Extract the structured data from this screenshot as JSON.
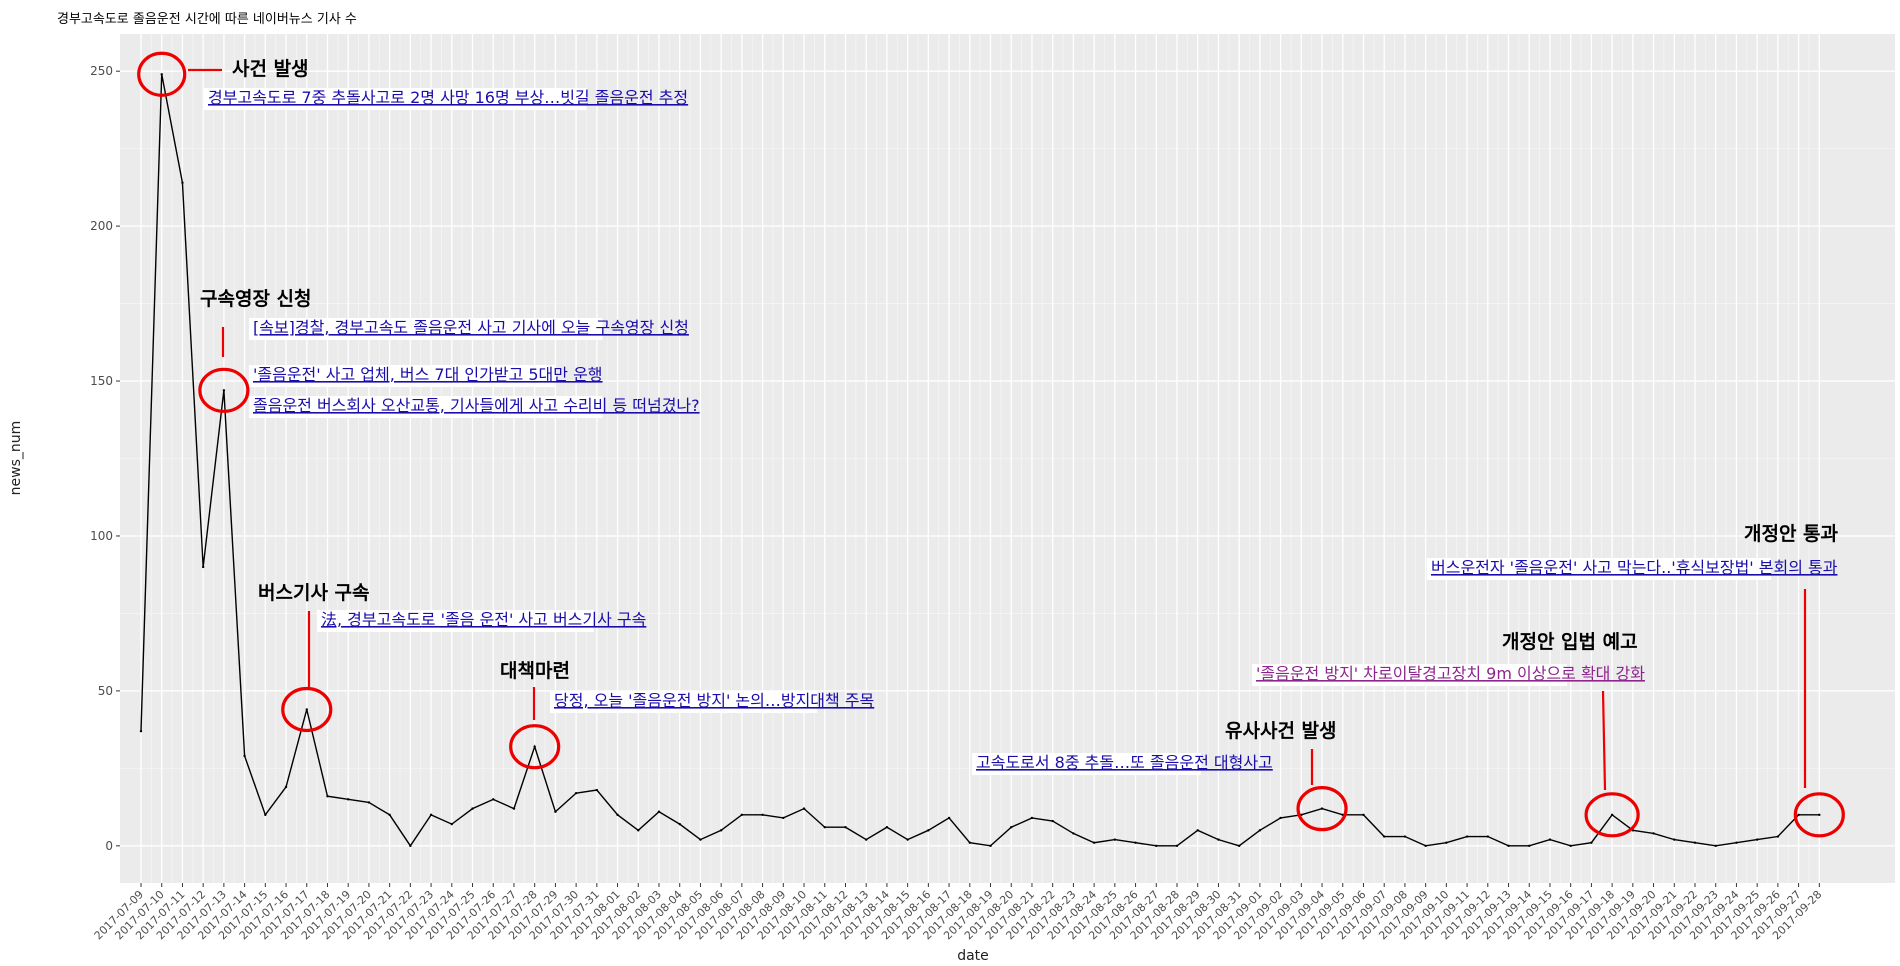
{
  "chart_data": {
    "type": "line",
    "title": "경부고속도로 졸음운전 시간에 따른 네이버뉴스 기사 수",
    "xlabel": "date",
    "ylabel": "news_num",
    "ylim": [
      -12,
      262
    ],
    "yticks": [
      0,
      50,
      100,
      150,
      200,
      250
    ],
    "grid": true,
    "line_color": "#000000",
    "dates": [
      "2017-07-09",
      "2017-07-10",
      "2017-07-11",
      "2017-07-12",
      "2017-07-13",
      "2017-07-14",
      "2017-07-15",
      "2017-07-16",
      "2017-07-17",
      "2017-07-18",
      "2017-07-19",
      "2017-07-20",
      "2017-07-21",
      "2017-07-22",
      "2017-07-23",
      "2017-07-24",
      "2017-07-25",
      "2017-07-26",
      "2017-07-27",
      "2017-07-28",
      "2017-07-29",
      "2017-07-30",
      "2017-07-31",
      "2017-08-01",
      "2017-08-02",
      "2017-08-03",
      "2017-08-04",
      "2017-08-05",
      "2017-08-06",
      "2017-08-07",
      "2017-08-08",
      "2017-08-09",
      "2017-08-10",
      "2017-08-11",
      "2017-08-12",
      "2017-08-13",
      "2017-08-14",
      "2017-08-15",
      "2017-08-16",
      "2017-08-17",
      "2017-08-18",
      "2017-08-19",
      "2017-08-20",
      "2017-08-21",
      "2017-08-22",
      "2017-08-23",
      "2017-08-24",
      "2017-08-25",
      "2017-08-26",
      "2017-08-27",
      "2017-08-28",
      "2017-08-29",
      "2017-08-30",
      "2017-08-31",
      "2017-09-01",
      "2017-09-02",
      "2017-09-03",
      "2017-09-04",
      "2017-09-05",
      "2017-09-06",
      "2017-09-07",
      "2017-09-08",
      "2017-09-09",
      "2017-09-10",
      "2017-09-11",
      "2017-09-12",
      "2017-09-13",
      "2017-09-14",
      "2017-09-15",
      "2017-09-16",
      "2017-09-17",
      "2017-09-18",
      "2017-09-19",
      "2017-09-20",
      "2017-09-21",
      "2017-09-22",
      "2017-09-23",
      "2017-09-24",
      "2017-09-25",
      "2017-09-26",
      "2017-09-27",
      "2017-09-28"
    ],
    "values": [
      37,
      249,
      214,
      90,
      147,
      29,
      10,
      19,
      44,
      16,
      15,
      14,
      10,
      0,
      10,
      7,
      12,
      15,
      12,
      32,
      11,
      17,
      18,
      10,
      5,
      11,
      7,
      2,
      5,
      10,
      10,
      9,
      12,
      6,
      6,
      2,
      6,
      2,
      5,
      9,
      1,
      0,
      6,
      9,
      8,
      4,
      1,
      2,
      1,
      0,
      0,
      5,
      2,
      0,
      5,
      9,
      10,
      12,
      10,
      10,
      3,
      3,
      0,
      1,
      3,
      3,
      0,
      0,
      2,
      0,
      1,
      10,
      5,
      4,
      2,
      1,
      0,
      1,
      2,
      3,
      10,
      10
    ],
    "annotations": [
      {
        "id": "incident",
        "title": "사건 발생",
        "point_date": "2017-07-10",
        "links": [
          {
            "text": "경부고속도로 7중 추돌사고로 2명 사망 16명 부상…빗길 졸음운전 추정",
            "color": "#1a0dab"
          }
        ]
      },
      {
        "id": "warrant",
        "title": "구속영장 신청",
        "point_date": "2017-07-13",
        "links": [
          {
            "text": "[속보]경찰, 경부고속도 졸음운전 사고 기사에 오늘 구속영장 신청",
            "color": "#1a0dab"
          },
          {
            "text": "'졸음운전' 사고 업체, 버스 7대 인가받고 5대만 운행",
            "color": "#1a0dab"
          },
          {
            "text": "졸음운전 버스회사 오산교통, 기사들에게 사고 수리비 등 떠넘겼나?",
            "color": "#1a0dab"
          }
        ]
      },
      {
        "id": "arrest",
        "title": "버스기사 구속",
        "point_date": "2017-07-17",
        "links": [
          {
            "text": "法, 경부고속도로 '졸음 운전' 사고 버스기사 구속",
            "color": "#1a0dab"
          }
        ]
      },
      {
        "id": "measures",
        "title": "대책마련",
        "point_date": "2017-07-28",
        "links": [
          {
            "text": "당정, 오늘 '졸음운전 방지' 논의…방지대책 주목",
            "color": "#1a0dab"
          }
        ]
      },
      {
        "id": "similar",
        "title": "유사사건 발생",
        "point_date": "2017-09-04",
        "links": [
          {
            "text": "고속도로서 8중 추돌…또 졸음운전 대형사고",
            "color": "#1a0dab"
          }
        ]
      },
      {
        "id": "notice",
        "title": "개정안 입법 예고",
        "point_date": "2017-09-18",
        "links": [
          {
            "text": "'졸음운전 방지' 차로이탈경고장치 9m 이상으로 확대 강화",
            "color": "#8e248e"
          }
        ]
      },
      {
        "id": "passed",
        "title": "개정안 통과",
        "point_date": "2017-09-28",
        "links": [
          {
            "text": "버스운전자 '졸음운전' 사고 막는다..'휴식보장법' 본회의 통과",
            "color": "#1a0dab"
          }
        ]
      }
    ],
    "highlight_color": "#ee0000"
  }
}
